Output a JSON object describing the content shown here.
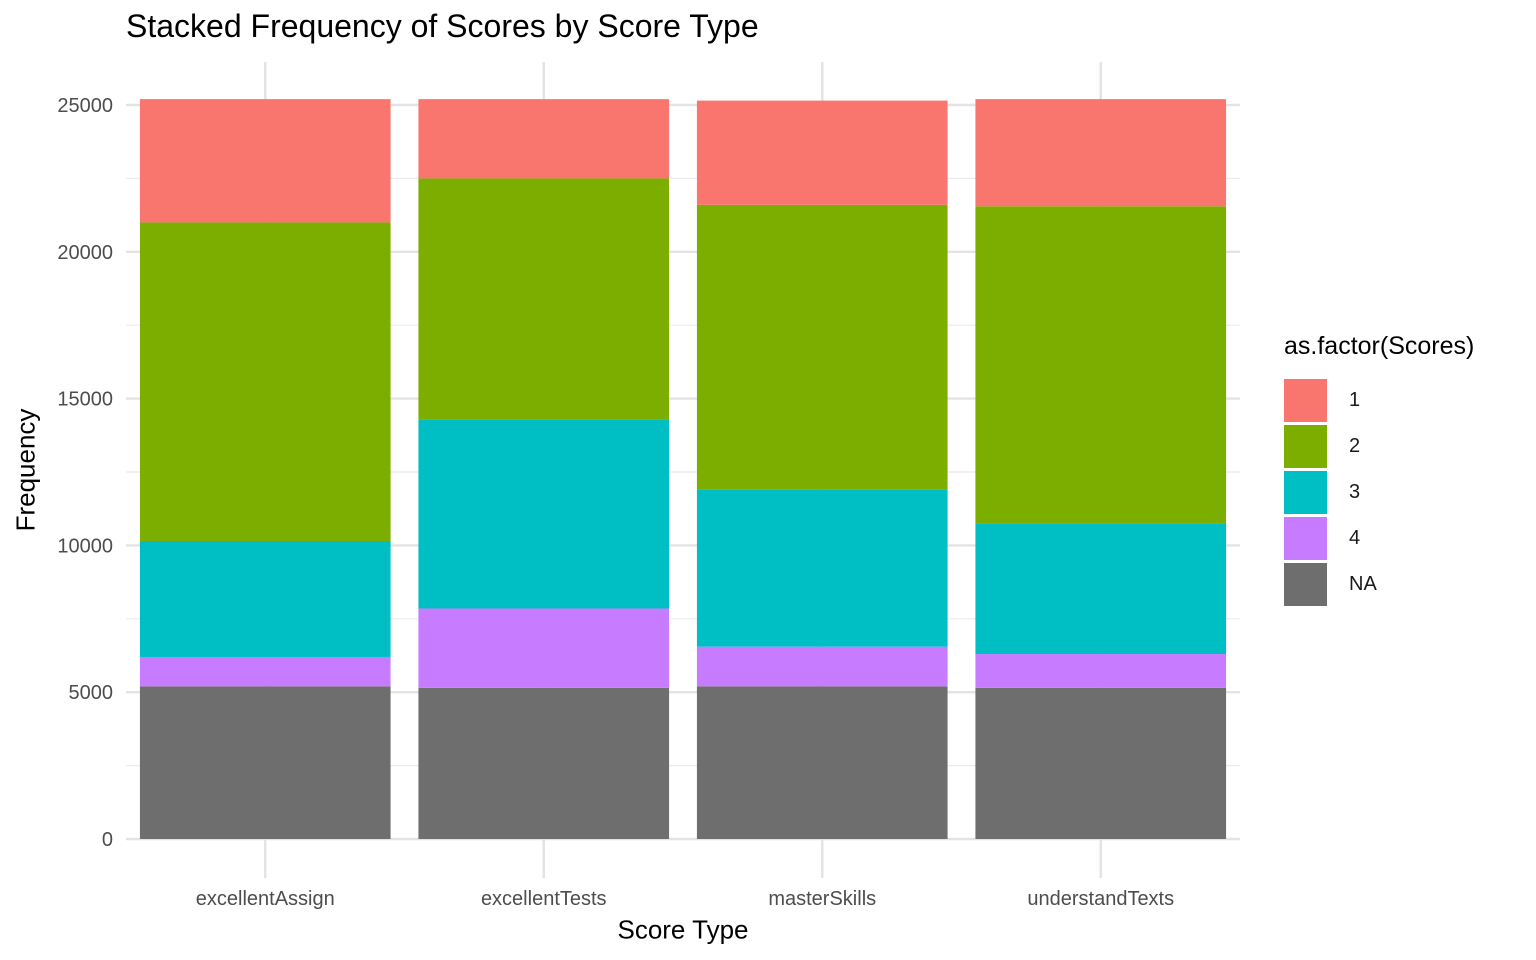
{
  "chart_data": {
    "type": "bar",
    "stacked": true,
    "title": "Stacked Frequency of Scores by Score Type",
    "xlabel": "Score Type",
    "ylabel": "Frequency",
    "categories": [
      "excellentAssign",
      "excellentTests",
      "masterSkills",
      "understandTexts"
    ],
    "ylim": [
      0,
      25200
    ],
    "yticks": [
      0,
      5000,
      10000,
      15000,
      20000,
      25000
    ],
    "ytick_labels": [
      "0",
      "5000",
      "10000",
      "15000",
      "20000",
      "25000"
    ],
    "grid": true,
    "legend": {
      "title": "as.factor(Scores)",
      "position": "right"
    },
    "series": [
      {
        "name": "1",
        "color": "#F8766D",
        "values": [
          4200,
          2700,
          3550,
          3650
        ]
      },
      {
        "name": "2",
        "color": "#7CAE00",
        "values": [
          10850,
          8200,
          9700,
          10800
        ]
      },
      {
        "name": "3",
        "color": "#00BFC4",
        "values": [
          3950,
          6450,
          5350,
          4450
        ]
      },
      {
        "name": "4",
        "color": "#C77CFF",
        "values": [
          1000,
          2700,
          1350,
          1150
        ]
      },
      {
        "name": "NA",
        "color": "#6E6E6E",
        "values": [
          5200,
          5150,
          5200,
          5150
        ]
      }
    ]
  }
}
